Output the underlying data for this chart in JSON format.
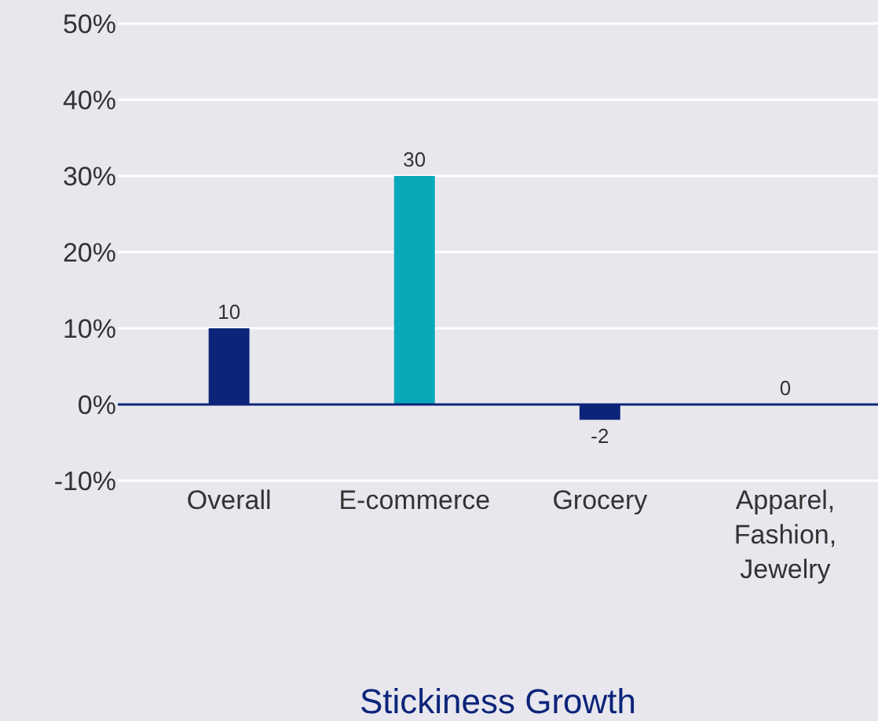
{
  "chart_data": {
    "type": "bar",
    "xlabel": "Stickiness Growth",
    "categories": [
      "Overall",
      "E-commerce",
      "Grocery",
      "Apparel, Fashion, Jewelry"
    ],
    "values": [
      10,
      30,
      -2,
      0
    ],
    "colors": [
      "#0c2479",
      "#0aa9b9",
      "#0c2479",
      "#0c2479"
    ],
    "data_labels": true,
    "ref_lines": [
      {
        "axis": "y",
        "value": 0,
        "color": "#0c2479"
      }
    ],
    "ylim": [
      -10,
      50
    ],
    "yticks": [
      {
        "value": -10,
        "label": "-10%"
      },
      {
        "value": 0,
        "label": "0%"
      },
      {
        "value": 10,
        "label": "10%"
      },
      {
        "value": 20,
        "label": "20%"
      },
      {
        "value": 30,
        "label": "30%"
      },
      {
        "value": 40,
        "label": "40%"
      },
      {
        "value": 50,
        "label": "50%"
      }
    ],
    "grid": "y"
  }
}
